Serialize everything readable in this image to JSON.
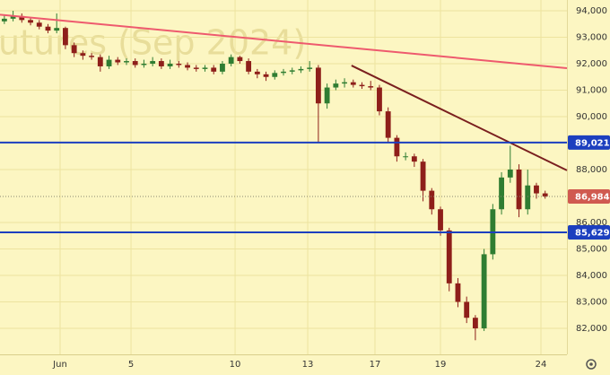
{
  "chart_data": {
    "type": "candlestick",
    "watermark": "utures (Sep 2024)",
    "x": [
      0,
      1,
      2,
      3,
      4,
      5,
      6,
      7,
      8,
      9,
      10,
      11,
      12,
      13,
      14,
      15,
      16,
      17,
      18,
      19,
      20,
      21,
      22,
      23,
      24,
      25,
      26,
      27,
      28,
      29,
      30,
      31,
      32,
      33,
      34,
      35,
      36,
      37,
      38,
      39,
      40,
      41,
      42,
      43,
      44,
      45,
      46,
      47,
      48,
      49,
      50,
      51,
      52,
      53,
      54,
      55,
      56,
      57,
      58,
      59,
      60,
      61,
      62
    ],
    "open": [
      93600,
      93700,
      93800,
      93650,
      93550,
      93400,
      93250,
      93350,
      92700,
      92400,
      92300,
      92250,
      91900,
      92150,
      92050,
      92100,
      91950,
      92000,
      92100,
      91900,
      92000,
      91950,
      91850,
      91800,
      91850,
      91700,
      92000,
      92250,
      92100,
      91700,
      91600,
      91500,
      91650,
      91700,
      91750,
      91800,
      91850,
      90500,
      91100,
      91250,
      91300,
      91200,
      91150,
      91100,
      90200,
      89200,
      88500,
      88500,
      88300,
      87200,
      86500,
      85700,
      83700,
      83000,
      82400,
      82000,
      84800,
      86500,
      87700,
      88000,
      86500,
      87400,
      87100
    ],
    "high": [
      93850,
      94000,
      93900,
      93750,
      93650,
      93500,
      93900,
      93400,
      92800,
      92500,
      92400,
      92350,
      92300,
      92250,
      92200,
      92200,
      92150,
      92250,
      92200,
      92150,
      92100,
      92050,
      91950,
      91950,
      91950,
      92100,
      92350,
      92300,
      92200,
      91800,
      91700,
      91750,
      91800,
      91850,
      91900,
      92100,
      91950,
      91250,
      91400,
      91450,
      91400,
      91300,
      91350,
      91200,
      90350,
      89300,
      88650,
      88600,
      88400,
      87300,
      86600,
      85800,
      83900,
      83200,
      82500,
      85000,
      86700,
      87900,
      88900,
      88200,
      88000,
      87500,
      87200
    ],
    "low": [
      93500,
      93600,
      93550,
      93450,
      93300,
      93150,
      93150,
      92550,
      92250,
      92150,
      92150,
      91700,
      91800,
      91950,
      91950,
      91850,
      91850,
      91900,
      91800,
      91800,
      91850,
      91750,
      91700,
      91700,
      91600,
      91600,
      91900,
      92000,
      91600,
      91450,
      91350,
      91400,
      91550,
      91600,
      91650,
      91700,
      89050,
      90300,
      91000,
      91100,
      91100,
      91050,
      91000,
      90050,
      89050,
      88300,
      88350,
      88100,
      86800,
      86300,
      85500,
      83400,
      82800,
      82200,
      81550,
      81900,
      84600,
      86300,
      87500,
      86200,
      86300,
      86900,
      86900
    ],
    "close": [
      93700,
      93800,
      93650,
      93550,
      93400,
      93250,
      93350,
      92700,
      92400,
      92300,
      92250,
      91900,
      92150,
      92050,
      92100,
      91950,
      92000,
      92100,
      91900,
      92000,
      91950,
      91850,
      91800,
      91850,
      91700,
      92000,
      92250,
      92100,
      91700,
      91600,
      91500,
      91650,
      91700,
      91750,
      91800,
      91850,
      90500,
      91100,
      91250,
      91300,
      91200,
      91150,
      91100,
      90200,
      89200,
      88500,
      88500,
      88300,
      87200,
      86500,
      85700,
      83700,
      83000,
      82400,
      82000,
      84800,
      86500,
      87700,
      88000,
      86500,
      87400,
      87100,
      86984
    ],
    "up_color": "#2f7d32",
    "down_color": "#8e1f1a",
    "xlim": [
      -0.5,
      64.5
    ],
    "ylim": [
      81017,
      94407
    ],
    "xticks": [
      {
        "value": 6.39,
        "label": "Jun"
      },
      {
        "value": 14.52,
        "label": "5"
      },
      {
        "value": 26.45,
        "label": "10"
      },
      {
        "value": 34.78,
        "label": "13"
      },
      {
        "value": 42.49,
        "label": "17"
      },
      {
        "value": 50.0,
        "label": "19"
      },
      {
        "value": 61.52,
        "label": "24"
      }
    ],
    "yticks": [
      {
        "value": 82000,
        "label": "82,000"
      },
      {
        "value": 83000,
        "label": "83,000"
      },
      {
        "value": 84000,
        "label": "84,000"
      },
      {
        "value": 85000,
        "label": "85,000"
      },
      {
        "value": 86000,
        "label": "86,000"
      },
      {
        "value": 88000,
        "label": "88,000"
      },
      {
        "value": 90000,
        "label": "90,000"
      },
      {
        "value": 91000,
        "label": "91,000"
      },
      {
        "value": 92000,
        "label": "92,000"
      },
      {
        "value": 93000,
        "label": "93,000"
      },
      {
        "value": 94000,
        "label": "94,000"
      }
    ],
    "grid": true,
    "levels": [
      {
        "value": 89021,
        "label": "89,021",
        "color": "#1c3fbf"
      },
      {
        "value": 85629,
        "label": "85,629",
        "color": "#1c3fbf"
      }
    ],
    "last_price": {
      "value": 86984,
      "label": "86,984",
      "color": "#d05a50"
    },
    "trend_lines": [
      {
        "color": "#ee5a6e",
        "x": [
          -0.5,
          64.5
        ],
        "y": [
          93850,
          91830
        ]
      },
      {
        "color": "#7a1f1f",
        "x": [
          39.8,
          64.5
        ],
        "y": [
          91930,
          87970
        ]
      }
    ]
  }
}
